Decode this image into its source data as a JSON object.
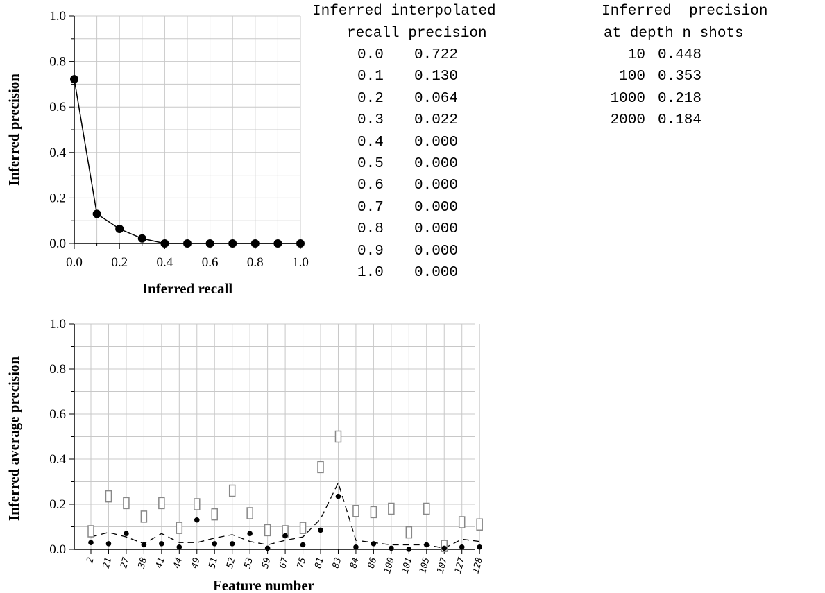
{
  "chart_data": [
    {
      "type": "line",
      "xlabel": "Inferred recall",
      "ylabel": "Inferred precision",
      "xlim": [
        0,
        1
      ],
      "ylim": [
        0,
        1
      ],
      "xticks": [
        "0.0",
        "0.2",
        "0.4",
        "0.6",
        "0.8",
        "1.0"
      ],
      "yticks": [
        "0.0",
        "0.2",
        "0.4",
        "0.6",
        "0.8",
        "1.0"
      ],
      "grid": true,
      "x": [
        0.0,
        0.1,
        0.2,
        0.3,
        0.4,
        0.5,
        0.6,
        0.7,
        0.8,
        0.9,
        1.0
      ],
      "y": [
        0.722,
        0.13,
        0.064,
        0.022,
        0.0,
        0.0,
        0.0,
        0.0,
        0.0,
        0.0,
        0.0
      ]
    },
    {
      "type": "table",
      "header": [
        "Inferred interpolated",
        "recall precision"
      ],
      "rows": [
        [
          "0.0",
          "0.722"
        ],
        [
          "0.1",
          "0.130"
        ],
        [
          "0.2",
          "0.064"
        ],
        [
          "0.3",
          "0.022"
        ],
        [
          "0.4",
          "0.000"
        ],
        [
          "0.5",
          "0.000"
        ],
        [
          "0.6",
          "0.000"
        ],
        [
          "0.7",
          "0.000"
        ],
        [
          "0.8",
          "0.000"
        ],
        [
          "0.9",
          "0.000"
        ],
        [
          "1.0",
          "0.000"
        ]
      ]
    },
    {
      "type": "table",
      "header": [
        "Inferred  precision",
        "at depth n shots"
      ],
      "rows": [
        [
          "10",
          "0.448"
        ],
        [
          "100",
          "0.353"
        ],
        [
          "1000",
          "0.218"
        ],
        [
          "2000",
          "0.184"
        ]
      ]
    },
    {
      "type": "scatter",
      "xlabel": "Feature number",
      "ylabel": "Inferred average precision",
      "ylim": [
        0,
        1
      ],
      "yticks": [
        "0.0",
        "0.2",
        "0.4",
        "0.6",
        "0.8",
        "1.0"
      ],
      "grid": true,
      "categories": [
        "2",
        "21",
        "27",
        "38",
        "41",
        "44",
        "49",
        "51",
        "52",
        "53",
        "59",
        "67",
        "75",
        "81",
        "83",
        "84",
        "86",
        "100",
        "101",
        "105",
        "107",
        "127",
        "128"
      ],
      "series": [
        {
          "marker": "box",
          "values": [
            0.08,
            0.235,
            0.205,
            0.145,
            0.205,
            0.095,
            0.2,
            0.155,
            0.26,
            0.16,
            0.085,
            0.08,
            0.095,
            0.365,
            0.5,
            0.17,
            0.165,
            0.18,
            0.075,
            0.18,
            0.015,
            0.12,
            0.11
          ]
        },
        {
          "marker": "dot",
          "values": [
            0.03,
            0.025,
            0.07,
            0.02,
            0.025,
            0.01,
            0.13,
            0.025,
            0.025,
            0.07,
            0.005,
            0.06,
            0.02,
            0.085,
            0.235,
            0.01,
            0.025,
            0.005,
            0.0,
            0.02,
            0.005,
            0.01,
            0.01
          ]
        },
        {
          "marker": "dashed",
          "values": [
            0.055,
            0.075,
            0.055,
            0.025,
            0.07,
            0.03,
            0.03,
            0.05,
            0.065,
            0.035,
            0.02,
            0.04,
            0.055,
            0.135,
            0.295,
            0.04,
            0.03,
            0.02,
            0.02,
            0.02,
            0.005,
            0.045,
            0.035
          ]
        }
      ]
    }
  ]
}
